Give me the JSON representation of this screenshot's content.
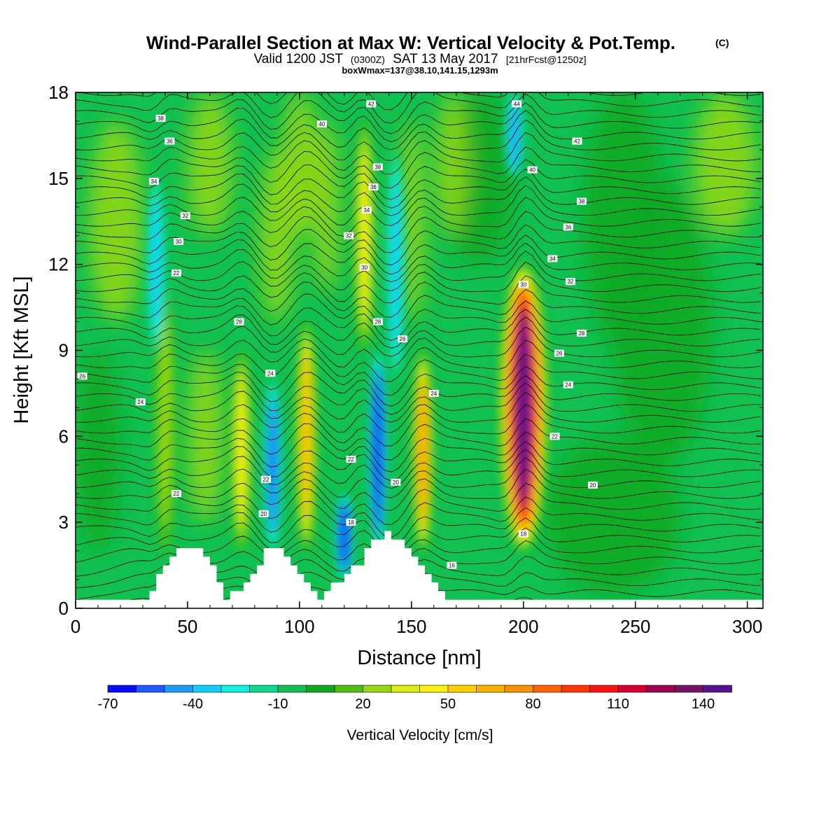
{
  "title": {
    "main": "Wind-Parallel Section at Max W: Vertical Velocity & Pot.Temp.",
    "copyright": "(C)",
    "valid_prefix": "Valid 1200 JST",
    "valid_utc": "(0300Z)",
    "valid_date": "SAT 13 May 2017",
    "forecast": "[21hrFcst@1250z]",
    "boxwmax": "boxWmax=137@38.10,141.15,1293m"
  },
  "chart_data": {
    "type": "heatmap",
    "xlabel": "Distance [nm]",
    "ylabel": "Height [Kft MSL]",
    "xlim": [
      0,
      307
    ],
    "ylim": [
      0,
      18
    ],
    "x_ticks": [
      0,
      50,
      100,
      150,
      200,
      250,
      300
    ],
    "y_ticks": [
      0,
      3,
      6,
      9,
      12,
      15,
      18
    ],
    "colorbar": {
      "title": "Vertical Velocity [cm/s]",
      "levels": [
        -70,
        -60,
        -50,
        -40,
        -30,
        -20,
        -10,
        0,
        10,
        20,
        30,
        40,
        50,
        60,
        70,
        80,
        90,
        100,
        110,
        120,
        130,
        140,
        150
      ],
      "labeled_levels": [
        -70,
        -40,
        -10,
        20,
        50,
        80,
        110,
        140
      ],
      "colors": [
        "#0a0aff",
        "#1e5aff",
        "#1a9cff",
        "#10d0ff",
        "#10f0e0",
        "#10d890",
        "#10c050",
        "#10a820",
        "#52c010",
        "#96d810",
        "#d8ee10",
        "#fff010",
        "#ffd000",
        "#ffb000",
        "#ff9000",
        "#ff6400",
        "#ff3800",
        "#ff1010",
        "#d80030",
        "#a00050",
        "#781068",
        "#581490"
      ]
    },
    "updraft_cores": [
      {
        "x": 40,
        "y_range": [
          2,
          11
        ],
        "value": 20
      },
      {
        "x": 74,
        "y_range": [
          2,
          9
        ],
        "value": 40
      },
      {
        "x": 103,
        "y_range": [
          2,
          10
        ],
        "value": 60
      },
      {
        "x": 129,
        "y_range": [
          9,
          17
        ],
        "value": 40
      },
      {
        "x": 155,
        "y_range": [
          2,
          9
        ],
        "value": 70
      },
      {
        "x": 200,
        "y_range": [
          2,
          12
        ],
        "value": 137
      }
    ],
    "downdraft_cores": [
      {
        "x": 36,
        "y_range": [
          9,
          15
        ],
        "value": -30
      },
      {
        "x": 88,
        "y_range": [
          2,
          8
        ],
        "value": -50
      },
      {
        "x": 120,
        "y_range": [
          1,
          4
        ],
        "value": -70
      },
      {
        "x": 135,
        "y_range": [
          2,
          9
        ],
        "value": -70
      },
      {
        "x": 143,
        "y_range": [
          8,
          16
        ],
        "value": -30
      },
      {
        "x": 196,
        "y_range": [
          15,
          18
        ],
        "value": -40
      }
    ],
    "terrain": [
      {
        "x": 0,
        "h": 0.3
      },
      {
        "x": 32,
        "h": 0.3
      },
      {
        "x": 35,
        "h": 0.6
      },
      {
        "x": 38,
        "h": 1.3
      },
      {
        "x": 45,
        "h": 2.0
      },
      {
        "x": 52,
        "h": 2.2
      },
      {
        "x": 58,
        "h": 2.0
      },
      {
        "x": 63,
        "h": 1.2
      },
      {
        "x": 66,
        "h": 0.3
      },
      {
        "x": 72,
        "h": 0.6
      },
      {
        "x": 80,
        "h": 1.2
      },
      {
        "x": 86,
        "h": 2.2
      },
      {
        "x": 93,
        "h": 2.1
      },
      {
        "x": 99,
        "h": 1.3
      },
      {
        "x": 105,
        "h": 0.6
      },
      {
        "x": 108,
        "h": 0.3
      },
      {
        "x": 113,
        "h": 0.6
      },
      {
        "x": 118,
        "h": 1.0
      },
      {
        "x": 127,
        "h": 1.5
      },
      {
        "x": 133,
        "h": 2.3
      },
      {
        "x": 140,
        "h": 2.6
      },
      {
        "x": 147,
        "h": 2.4
      },
      {
        "x": 153,
        "h": 1.6
      },
      {
        "x": 160,
        "h": 0.9
      },
      {
        "x": 165,
        "h": 0.3
      },
      {
        "x": 307,
        "h": 0.3
      }
    ],
    "theta_labels": [
      {
        "text": "38",
        "x": 38,
        "y": 17.1
      },
      {
        "text": "36",
        "x": 42,
        "y": 16.3
      },
      {
        "text": "34",
        "x": 35,
        "y": 14.9
      },
      {
        "text": "32",
        "x": 49,
        "y": 13.7
      },
      {
        "text": "30",
        "x": 46,
        "y": 12.8
      },
      {
        "text": "22",
        "x": 45,
        "y": 11.7
      },
      {
        "text": "28",
        "x": 73,
        "y": 10.0
      },
      {
        "text": "26",
        "x": 3,
        "y": 8.1
      },
      {
        "text": "24",
        "x": 29,
        "y": 7.2
      },
      {
        "text": "24",
        "x": 87,
        "y": 8.2
      },
      {
        "text": "22",
        "x": 45,
        "y": 4.0
      },
      {
        "text": "22",
        "x": 85,
        "y": 4.5
      },
      {
        "text": "20",
        "x": 84,
        "y": 3.3
      },
      {
        "text": "40",
        "x": 110,
        "y": 16.9
      },
      {
        "text": "42",
        "x": 132,
        "y": 17.6
      },
      {
        "text": "38",
        "x": 135,
        "y": 15.4
      },
      {
        "text": "36",
        "x": 133,
        "y": 14.7
      },
      {
        "text": "34",
        "x": 130,
        "y": 13.9
      },
      {
        "text": "32",
        "x": 122,
        "y": 13.0
      },
      {
        "text": "30",
        "x": 129,
        "y": 11.9
      },
      {
        "text": "28",
        "x": 135,
        "y": 10.0
      },
      {
        "text": "26",
        "x": 146,
        "y": 9.4
      },
      {
        "text": "22",
        "x": 123,
        "y": 5.2
      },
      {
        "text": "20",
        "x": 143,
        "y": 4.4
      },
      {
        "text": "18",
        "x": 123,
        "y": 3.0
      },
      {
        "text": "24",
        "x": 160,
        "y": 7.5
      },
      {
        "text": "16",
        "x": 168,
        "y": 1.5
      },
      {
        "text": "44",
        "x": 197,
        "y": 17.6
      },
      {
        "text": "40",
        "x": 204,
        "y": 15.3
      },
      {
        "text": "42",
        "x": 224,
        "y": 16.3
      },
      {
        "text": "38",
        "x": 226,
        "y": 14.2
      },
      {
        "text": "36",
        "x": 220,
        "y": 13.3
      },
      {
        "text": "34",
        "x": 213,
        "y": 12.2
      },
      {
        "text": "32",
        "x": 221,
        "y": 11.4
      },
      {
        "text": "30",
        "x": 200,
        "y": 11.3
      },
      {
        "text": "28",
        "x": 226,
        "y": 9.6
      },
      {
        "text": "26",
        "x": 216,
        "y": 8.9
      },
      {
        "text": "24",
        "x": 220,
        "y": 7.8
      },
      {
        "text": "22",
        "x": 214,
        "y": 6.0
      },
      {
        "text": "20",
        "x": 231,
        "y": 4.3
      },
      {
        "text": "18",
        "x": 200,
        "y": 2.6
      }
    ]
  }
}
